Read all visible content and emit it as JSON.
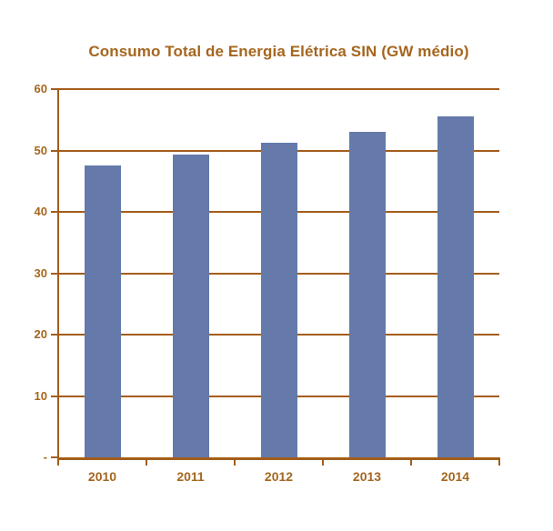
{
  "colors": {
    "text_brown": "#a5661f",
    "line_brown": "#a35d1a",
    "bar_blue": "#6579ab",
    "background": "#ffffff"
  },
  "chart_data": {
    "type": "bar",
    "title": "Consumo Total de Energia Elétrica SIN (GW médio)",
    "categories": [
      "2010",
      "2011",
      "2012",
      "2013",
      "2014"
    ],
    "values": [
      47.5,
      49.4,
      51.3,
      53.0,
      55.5
    ],
    "xlabel": "",
    "ylabel": "",
    "ylim": [
      0,
      60
    ],
    "y_ticks": [
      60,
      50,
      40,
      30,
      20,
      10,
      0
    ],
    "y_tick_labels": [
      "60",
      "50",
      "40",
      "30",
      "20",
      "10",
      "-"
    ],
    "grid": "horizontal-on",
    "legend": "none",
    "bar_color": "#6579ab",
    "axis_color": "#a35d1a",
    "label_color": "#a5661f"
  }
}
